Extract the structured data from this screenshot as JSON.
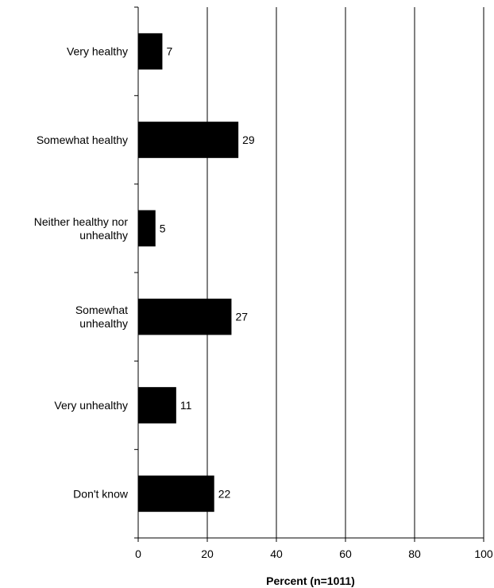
{
  "chart_data": {
    "type": "bar",
    "orientation": "horizontal",
    "categories": [
      [
        "Very healthy"
      ],
      [
        "Somewhat healthy"
      ],
      [
        "Neither healthy nor",
        "unhealthy"
      ],
      [
        "Somewhat",
        "unhealthy"
      ],
      [
        "Very unhealthy"
      ],
      [
        "Don't know"
      ]
    ],
    "values": [
      7,
      29,
      5,
      27,
      11,
      22
    ],
    "data_labels": [
      "7",
      "29",
      "5",
      "27",
      "11",
      "22"
    ],
    "xlabel": "Percent (n=1011)",
    "ylabel": "",
    "xlim": [
      0,
      100
    ],
    "xticks": [
      0,
      20,
      40,
      60,
      80,
      100
    ],
    "grid": "vertical",
    "bar_color": "#000000",
    "grid_color": "#000000"
  }
}
